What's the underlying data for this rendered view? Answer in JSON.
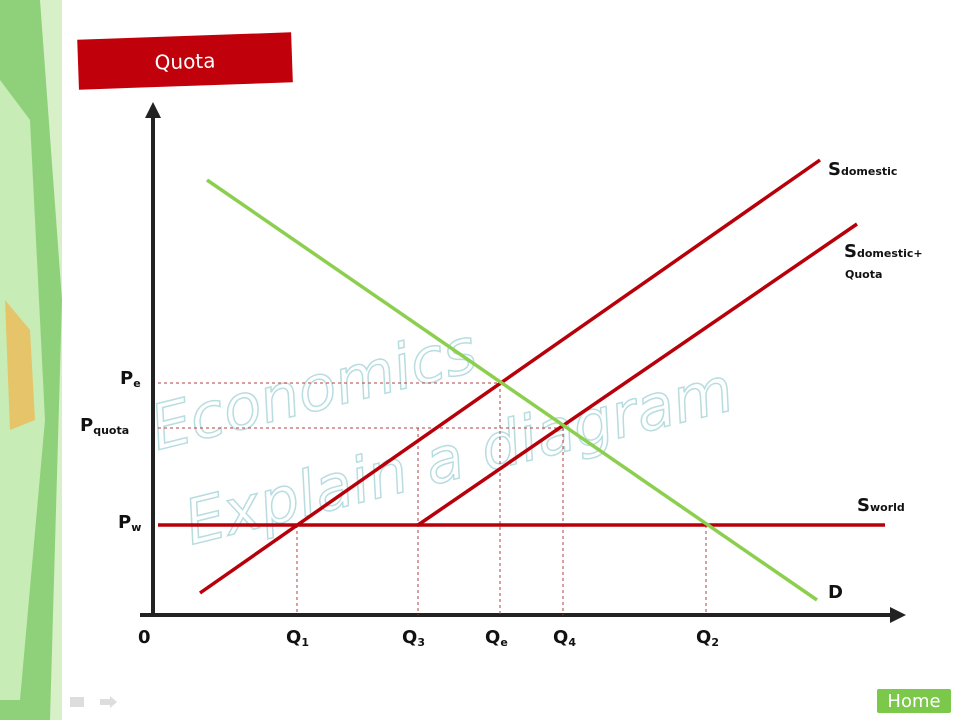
{
  "header": {
    "title": "Quota"
  },
  "watermark": [
    "Economics",
    "Explain a diagram"
  ],
  "axis": {
    "origin": "0"
  },
  "price_labels": [
    {
      "main": "P",
      "sub": "e"
    },
    {
      "main": "P",
      "sub": "quota"
    },
    {
      "main": "P",
      "sub": "w"
    }
  ],
  "quantity_labels": [
    {
      "main": "Q",
      "sub": "1"
    },
    {
      "main": "Q",
      "sub": "3"
    },
    {
      "main": "Q",
      "sub": "e"
    },
    {
      "main": "Q",
      "sub": "4"
    },
    {
      "main": "Q",
      "sub": "2"
    }
  ],
  "curve_labels": [
    {
      "main": "S",
      "sub": "domestic"
    },
    {
      "main": "S",
      "sub": "domestic+",
      "sub2": "Quota"
    },
    {
      "main": "S",
      "sub": "world"
    },
    {
      "main": "D"
    }
  ],
  "nav": {
    "home": "Home"
  }
}
